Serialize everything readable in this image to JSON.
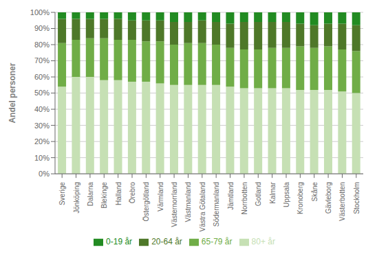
{
  "chart_data": {
    "type": "bar",
    "stacked": true,
    "ylabel": "Andel personer",
    "categories": [
      "Sverige",
      "Jönköping",
      "Dalarna",
      "Blekinge",
      "Halland",
      "Örebro",
      "Östergötland",
      "Värmland",
      "Västernorrland",
      "Västmanland",
      "Västra Götaland",
      "Södermanland",
      "Jämtland",
      "Norrbotten",
      "Gotland",
      "Kalmar",
      "Uppsala",
      "Kronoberg",
      "Skåne",
      "Gävleborg",
      "Västerbotten",
      "Stockholm"
    ],
    "series": [
      {
        "name": "80+ år",
        "color": "#c6e0b4",
        "values": [
          54,
          60,
          60,
          58,
          58,
          57,
          57,
          56,
          55,
          55,
          55,
          55,
          54,
          53,
          53,
          53,
          53,
          52,
          52,
          52,
          51,
          50
        ]
      },
      {
        "name": "65-79 år",
        "color": "#70ad47",
        "values": [
          27,
          23,
          24,
          26,
          25,
          26,
          25,
          26,
          25,
          26,
          26,
          25,
          24,
          24,
          24,
          25,
          25,
          27,
          26,
          27,
          26,
          26
        ]
      },
      {
        "name": "20-64 år",
        "color": "#4e7829",
        "values": [
          15,
          13,
          12,
          12,
          13,
          12,
          13,
          13,
          14,
          13,
          14,
          14,
          15,
          17,
          17,
          16,
          16,
          14,
          14,
          14,
          16,
          16
        ]
      },
      {
        "name": "0-19 år",
        "color": "#228B22",
        "values": [
          4,
          4,
          4,
          4,
          4,
          5,
          5,
          5,
          6,
          6,
          5,
          6,
          7,
          6,
          6,
          6,
          6,
          7,
          8,
          7,
          7,
          8
        ]
      }
    ],
    "ylim": [
      0,
      100
    ],
    "yticks": [
      {
        "value": 0,
        "label": "0%"
      },
      {
        "value": 10,
        "label": "10%"
      },
      {
        "value": 20,
        "label": "20%"
      },
      {
        "value": 30,
        "label": "30%"
      },
      {
        "value": 40,
        "label": "40%"
      },
      {
        "value": 50,
        "label": "50%"
      },
      {
        "value": 60,
        "label": "60%"
      },
      {
        "value": 70,
        "label": "70%"
      },
      {
        "value": 80,
        "label": "80%"
      },
      {
        "value": 90,
        "label": "90%"
      },
      {
        "value": 100,
        "label": "100%"
      }
    ],
    "grid": true,
    "legend": "bottom"
  }
}
